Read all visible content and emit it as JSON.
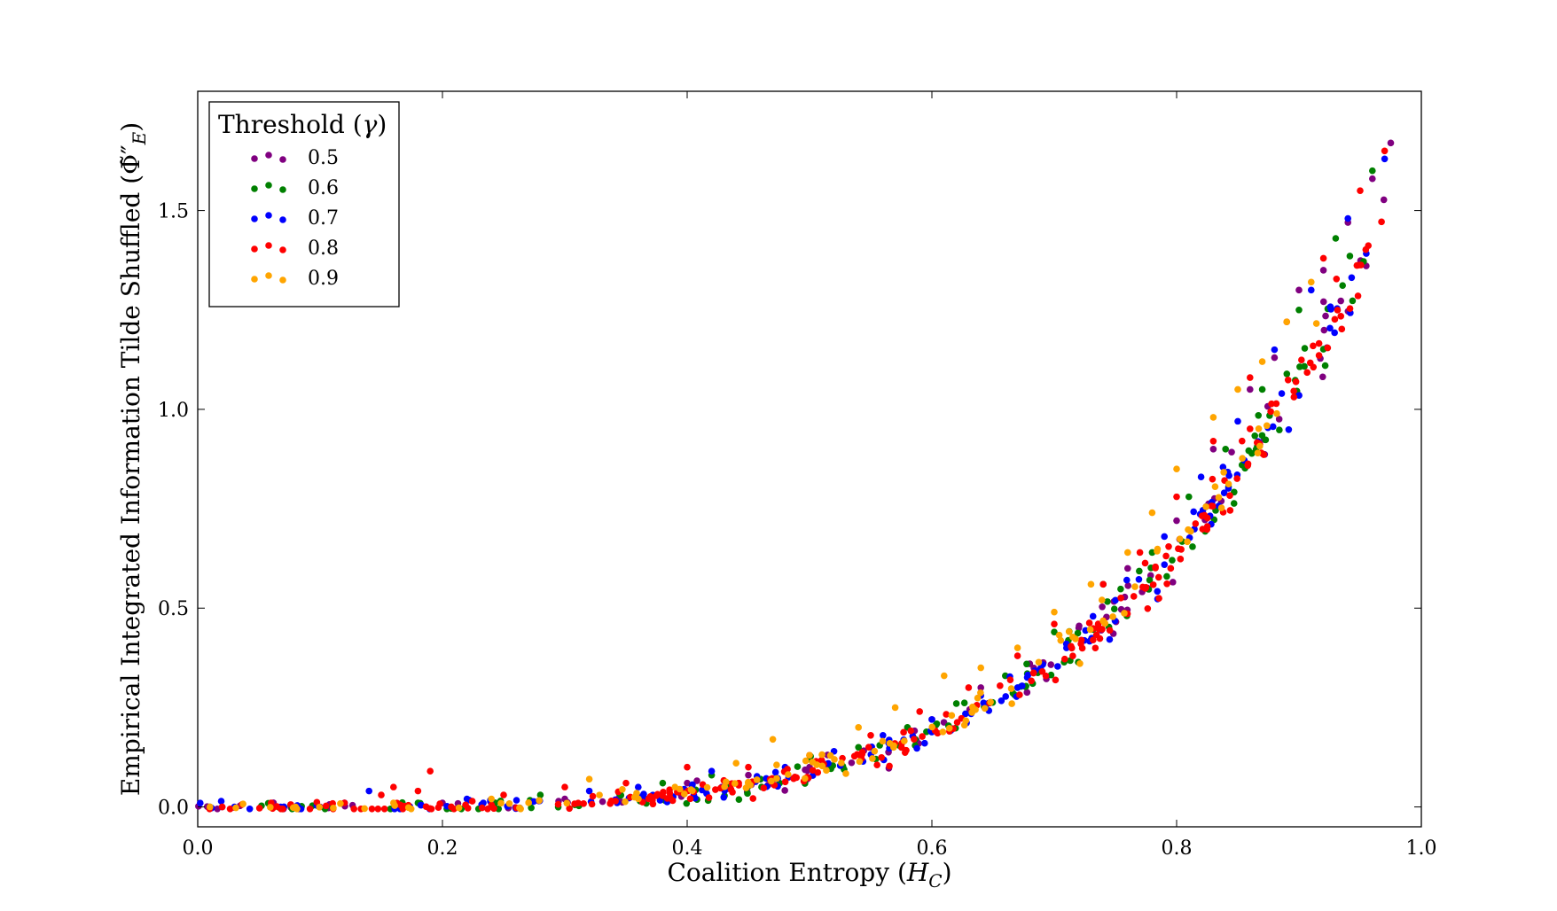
{
  "chart_data": {
    "type": "scatter",
    "xlabel": "Coalition Entropy (H_C)",
    "ylabel": "Empirical Integrated Information Tilde Shuffled (Φ̃″_E)",
    "xlim": [
      0.0,
      1.0
    ],
    "ylim": [
      -0.05,
      1.8
    ],
    "x_ticks": [
      "0.0",
      "0.2",
      "0.4",
      "0.6",
      "0.8",
      "1.0"
    ],
    "y_ticks": [
      "0.0",
      "0.5",
      "1.0",
      "1.5"
    ],
    "grid": false,
    "legend": {
      "title": "Threshold (γ)",
      "placement": "top-left"
    },
    "trend": {
      "form": "y = 1.68 * x^4.3 (approximate shared trend of all series)"
    },
    "series": [
      {
        "name": "0.5",
        "color": "#800080",
        "x": [
          0.02,
          0.1,
          0.2,
          0.3,
          0.4,
          0.45,
          0.5,
          0.55,
          0.6,
          0.64,
          0.68,
          0.72,
          0.76,
          0.8,
          0.83,
          0.86,
          0.88,
          0.9,
          0.92,
          0.94,
          0.96,
          0.975
        ],
        "y": [
          0.0,
          0.0,
          0.01,
          0.02,
          0.06,
          0.08,
          0.1,
          0.15,
          0.22,
          0.3,
          0.36,
          0.45,
          0.6,
          0.72,
          0.9,
          1.05,
          1.13,
          1.3,
          1.35,
          1.47,
          1.58,
          1.67
        ]
      },
      {
        "name": "0.6",
        "color": "#008000",
        "x": [
          0.01,
          0.08,
          0.18,
          0.28,
          0.38,
          0.42,
          0.46,
          0.5,
          0.54,
          0.58,
          0.62,
          0.66,
          0.7,
          0.74,
          0.78,
          0.81,
          0.84,
          0.87,
          0.9,
          0.93,
          0.96
        ],
        "y": [
          0.0,
          0.0,
          0.01,
          0.03,
          0.06,
          0.08,
          0.07,
          0.12,
          0.15,
          0.2,
          0.26,
          0.33,
          0.44,
          0.56,
          0.64,
          0.78,
          0.9,
          1.05,
          1.25,
          1.43,
          1.6
        ]
      },
      {
        "name": "0.7",
        "color": "#0000ff",
        "x": [
          0.03,
          0.12,
          0.14,
          0.22,
          0.32,
          0.36,
          0.42,
          0.48,
          0.52,
          0.56,
          0.6,
          0.64,
          0.67,
          0.71,
          0.75,
          0.79,
          0.82,
          0.85,
          0.88,
          0.91,
          0.94,
          0.97
        ],
        "y": [
          0.0,
          0.01,
          0.04,
          0.02,
          0.04,
          0.05,
          0.09,
          0.1,
          0.14,
          0.18,
          0.22,
          0.28,
          0.3,
          0.4,
          0.52,
          0.68,
          0.83,
          0.97,
          1.15,
          1.3,
          1.48,
          1.63
        ]
      },
      {
        "name": "0.8",
        "color": "#ff0000",
        "x": [
          0.02,
          0.06,
          0.12,
          0.15,
          0.16,
          0.18,
          0.19,
          0.25,
          0.3,
          0.35,
          0.4,
          0.45,
          0.5,
          0.55,
          0.59,
          0.63,
          0.67,
          0.7,
          0.74,
          0.77,
          0.8,
          0.83,
          0.86,
          0.89,
          0.92,
          0.95,
          0.97
        ],
        "y": [
          0.0,
          0.01,
          0.01,
          0.03,
          0.05,
          0.04,
          0.09,
          0.03,
          0.05,
          0.06,
          0.1,
          0.1,
          0.13,
          0.18,
          0.24,
          0.3,
          0.38,
          0.46,
          0.56,
          0.64,
          0.78,
          0.92,
          1.08,
          1.22,
          1.38,
          1.55,
          1.65
        ]
      },
      {
        "name": "0.9",
        "color": "#ffa500",
        "x": [
          0.01,
          0.08,
          0.16,
          0.24,
          0.32,
          0.39,
          0.44,
          0.47,
          0.5,
          0.54,
          0.57,
          0.61,
          0.64,
          0.67,
          0.7,
          0.73,
          0.76,
          0.78,
          0.8,
          0.83,
          0.85,
          0.87,
          0.89,
          0.91
        ],
        "y": [
          0.0,
          0.0,
          0.01,
          0.02,
          0.07,
          0.05,
          0.11,
          0.17,
          0.13,
          0.2,
          0.25,
          0.33,
          0.35,
          0.4,
          0.49,
          0.56,
          0.64,
          0.74,
          0.85,
          0.98,
          1.05,
          1.12,
          1.22,
          1.32
        ]
      }
    ]
  }
}
